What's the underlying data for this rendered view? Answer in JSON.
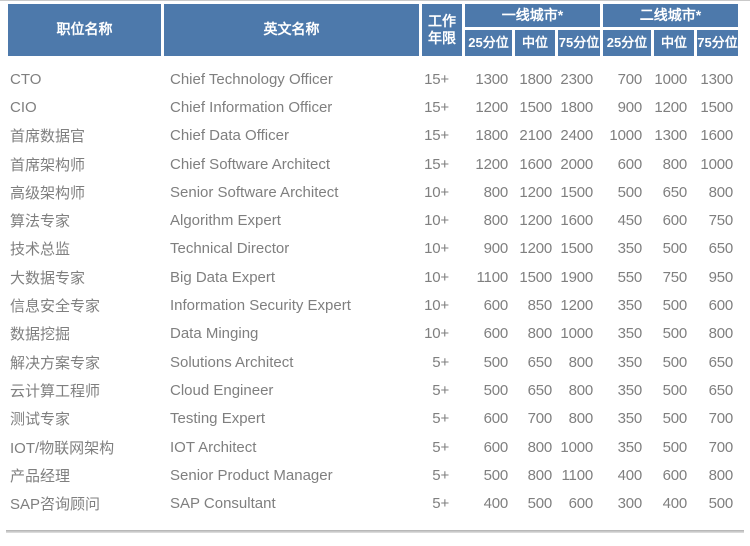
{
  "colors": {
    "header_bg": "#4d79ab",
    "header_text": "#ffffff",
    "body_text": "#7f7f7f",
    "top_rule": "#c9c9c9",
    "bottom_rule": "#b0b0b0"
  },
  "table": {
    "header": {
      "job_title_cn": "职位名称",
      "job_title_en": "英文名称",
      "experience_line1": "工作",
      "experience_line2": "年限",
      "tier1_group": "一线城市*",
      "tier2_group": "二线城市*",
      "percentiles": [
        "25分位",
        "中位",
        "75分位"
      ]
    },
    "rows": [
      {
        "title_cn": "CTO",
        "title_en": "Chief Technology Officer",
        "years": "15+",
        "tier1": [
          "1300",
          "1800",
          "2300"
        ],
        "tier2": [
          "700",
          "1000",
          "1300"
        ]
      },
      {
        "title_cn": "CIO",
        "title_en": "Chief Information Officer",
        "years": "15+",
        "tier1": [
          "1200",
          "1500",
          "1800"
        ],
        "tier2": [
          "900",
          "1200",
          "1500"
        ]
      },
      {
        "title_cn": "首席数据官",
        "title_en": "Chief Data Officer",
        "years": "15+",
        "tier1": [
          "1800",
          "2100",
          "2400"
        ],
        "tier2": [
          "1000",
          "1300",
          "1600"
        ]
      },
      {
        "title_cn": "首席架构师",
        "title_en": "Chief Software Architect",
        "years": "15+",
        "tier1": [
          "1200",
          "1600",
          "2000"
        ],
        "tier2": [
          "600",
          "800",
          "1000"
        ]
      },
      {
        "title_cn": "高级架构师",
        "title_en": "Senior Software Architect",
        "years": "10+",
        "tier1": [
          "800",
          "1200",
          "1500"
        ],
        "tier2": [
          "500",
          "650",
          "800"
        ]
      },
      {
        "title_cn": "算法专家",
        "title_en": "Algorithm Expert",
        "years": "10+",
        "tier1": [
          "800",
          "1200",
          "1600"
        ],
        "tier2": [
          "450",
          "600",
          "750"
        ]
      },
      {
        "title_cn": "技术总监",
        "title_en": "Technical Director",
        "years": "10+",
        "tier1": [
          "900",
          "1200",
          "1500"
        ],
        "tier2": [
          "350",
          "500",
          "650"
        ]
      },
      {
        "title_cn": "大数据专家",
        "title_en": "Big Data Expert",
        "years": "10+",
        "tier1": [
          "1100",
          "1500",
          "1900"
        ],
        "tier2": [
          "550",
          "750",
          "950"
        ]
      },
      {
        "title_cn": "信息安全专家",
        "title_en": "Information Security Expert",
        "years": "10+",
        "tier1": [
          "600",
          "850",
          "1200"
        ],
        "tier2": [
          "350",
          "500",
          "600"
        ]
      },
      {
        "title_cn": "数据挖掘",
        "title_en": "Data Minging",
        "years": "10+",
        "tier1": [
          "600",
          "800",
          "1000"
        ],
        "tier2": [
          "350",
          "500",
          "800"
        ]
      },
      {
        "title_cn": "解决方案专家",
        "title_en": "Solutions Architect",
        "years": "5+",
        "tier1": [
          "500",
          "650",
          "800"
        ],
        "tier2": [
          "350",
          "500",
          "650"
        ]
      },
      {
        "title_cn": "云计算工程师",
        "title_en": "Cloud Engineer",
        "years": "5+",
        "tier1": [
          "500",
          "650",
          "800"
        ],
        "tier2": [
          "350",
          "500",
          "650"
        ]
      },
      {
        "title_cn": "测试专家",
        "title_en": "Testing Expert",
        "years": "5+",
        "tier1": [
          "600",
          "700",
          "800"
        ],
        "tier2": [
          "350",
          "500",
          "700"
        ]
      },
      {
        "title_cn": "IOT/物联网架构",
        "title_en": "IOT Architect",
        "years": "5+",
        "tier1": [
          "600",
          "800",
          "1000"
        ],
        "tier2": [
          "350",
          "500",
          "700"
        ]
      },
      {
        "title_cn": "产品经理",
        "title_en": "Senior Product Manager",
        "years": "5+",
        "tier1": [
          "500",
          "800",
          "1100"
        ],
        "tier2": [
          "400",
          "600",
          "800"
        ]
      },
      {
        "title_cn": "SAP咨询顾问",
        "title_en": "SAP Consultant",
        "years": "5+",
        "tier1": [
          "400",
          "500",
          "600"
        ],
        "tier2": [
          "300",
          "400",
          "500"
        ]
      }
    ]
  }
}
